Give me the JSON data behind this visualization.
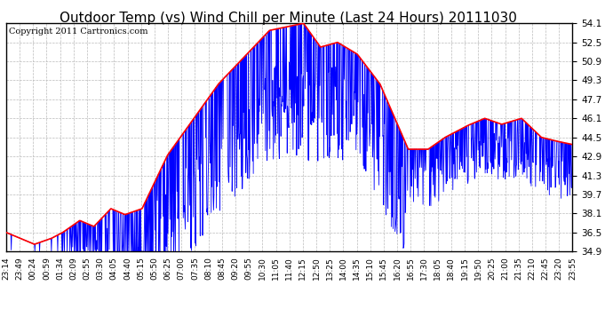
{
  "title": "Outdoor Temp (vs) Wind Chill per Minute (Last 24 Hours) 20111030",
  "copyright": "Copyright 2011 Cartronics.com",
  "yticks": [
    34.9,
    36.5,
    38.1,
    39.7,
    41.3,
    42.9,
    44.5,
    46.1,
    47.7,
    49.3,
    50.9,
    52.5,
    54.1
  ],
  "ymin": 34.9,
  "ymax": 54.1,
  "outdoor_color": "#ff0000",
  "windchill_color": "#0000ff",
  "background_color": "#ffffff",
  "grid_color": "#bbbbbb",
  "title_fontsize": 11,
  "copyright_fontsize": 7,
  "x_labels": [
    "23:14",
    "23:49",
    "00:24",
    "00:59",
    "01:34",
    "02:09",
    "02:55",
    "03:30",
    "04:05",
    "04:40",
    "05:15",
    "05:50",
    "06:25",
    "07:00",
    "07:35",
    "08:10",
    "08:45",
    "09:20",
    "09:55",
    "10:30",
    "11:05",
    "11:40",
    "12:15",
    "12:50",
    "13:25",
    "14:00",
    "14:35",
    "15:10",
    "15:45",
    "16:20",
    "16:55",
    "17:30",
    "18:05",
    "18:40",
    "19:15",
    "19:50",
    "20:25",
    "21:00",
    "21:35",
    "22:10",
    "22:45",
    "23:20",
    "23:55"
  ]
}
